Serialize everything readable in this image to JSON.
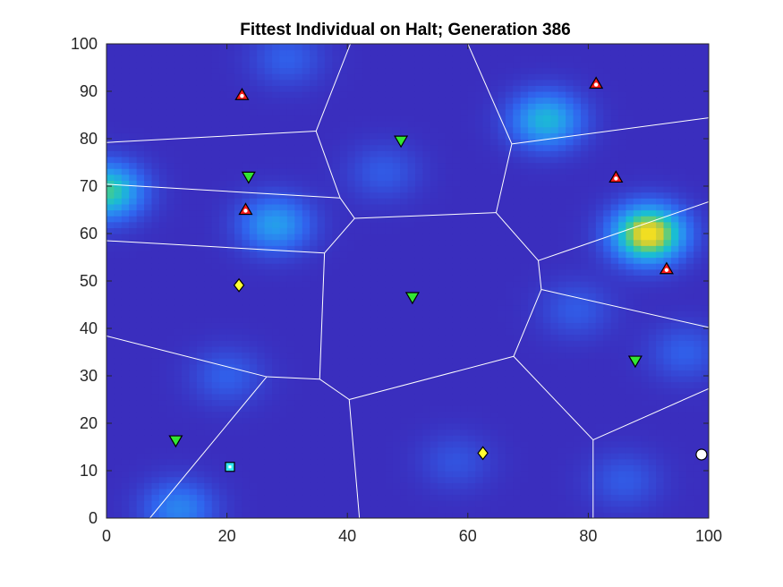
{
  "chart_data": {
    "type": "scatter",
    "title": "Fittest Individual on Halt; Generation 386",
    "xlabel": "",
    "ylabel": "",
    "xlim": [
      0,
      100
    ],
    "ylim": [
      0,
      100
    ],
    "x_ticks": [
      0,
      20,
      40,
      60,
      80,
      100
    ],
    "y_ticks": [
      0,
      10,
      20,
      30,
      40,
      50,
      60,
      70,
      80,
      90,
      100
    ],
    "grid": false,
    "legend": "none",
    "colors": {
      "background_low": "#3a2fbd",
      "background_mid": "#2f86f5",
      "background_high": "#f8e21e",
      "region_lines": "#ffffff",
      "red_triangle": "#ff1a1a",
      "green_triangle": "#33e633",
      "yellow_diamond": "#ffff33",
      "cyan_square": "#33e6f2",
      "white_circle": "#ffffff"
    },
    "heat_sources": [
      {
        "x": 90,
        "y": 60,
        "intensity": 1.0
      },
      {
        "x": 73,
        "y": 84,
        "intensity": 0.55
      },
      {
        "x": 0,
        "y": 69,
        "intensity": 0.7
      },
      {
        "x": 28,
        "y": 62,
        "intensity": 0.45
      },
      {
        "x": 12,
        "y": 2,
        "intensity": 0.35
      },
      {
        "x": 46,
        "y": 73,
        "intensity": 0.18
      },
      {
        "x": 20,
        "y": 30,
        "intensity": 0.2
      },
      {
        "x": 78,
        "y": 44,
        "intensity": 0.18
      },
      {
        "x": 96,
        "y": 35,
        "intensity": 0.2
      },
      {
        "x": 30,
        "y": 97,
        "intensity": 0.2
      },
      {
        "x": 58,
        "y": 12,
        "intensity": 0.15
      },
      {
        "x": 86,
        "y": 8,
        "intensity": 0.18
      }
    ],
    "region_edges": [
      [
        [
          0,
          79.2
        ],
        [
          34.8,
          81.6
        ]
      ],
      [
        [
          34.8,
          81.6
        ],
        [
          40.5,
          100
        ]
      ],
      [
        [
          34.8,
          81.6
        ],
        [
          38.8,
          67.5
        ]
      ],
      [
        [
          0,
          70.4
        ],
        [
          38.8,
          67.5
        ]
      ],
      [
        [
          38.8,
          67.5
        ],
        [
          41.2,
          63.2
        ]
      ],
      [
        [
          0,
          58.5
        ],
        [
          36.2,
          55.9
        ]
      ],
      [
        [
          36.2,
          55.9
        ],
        [
          41.2,
          63.2
        ]
      ],
      [
        [
          41.2,
          63.2
        ],
        [
          64.7,
          64.4
        ]
      ],
      [
        [
          60,
          100
        ],
        [
          67.3,
          78.9
        ]
      ],
      [
        [
          64.7,
          64.4
        ],
        [
          67.3,
          78.9
        ]
      ],
      [
        [
          67.3,
          78.9
        ],
        [
          100,
          84.4
        ]
      ],
      [
        [
          64.7,
          64.4
        ],
        [
          71.7,
          54.3
        ]
      ],
      [
        [
          71.7,
          54.3
        ],
        [
          100,
          66.7
        ]
      ],
      [
        [
          71.7,
          54.3
        ],
        [
          72.2,
          48.2
        ]
      ],
      [
        [
          72.2,
          48.2
        ],
        [
          100,
          40.2
        ]
      ],
      [
        [
          72.2,
          48.2
        ],
        [
          67.6,
          34.1
        ]
      ],
      [
        [
          36.2,
          55.9
        ],
        [
          35.4,
          29.3
        ]
      ],
      [
        [
          0,
          38.4
        ],
        [
          26.6,
          29.8
        ]
      ],
      [
        [
          26.6,
          29.8
        ],
        [
          35.4,
          29.3
        ]
      ],
      [
        [
          35.4,
          29.3
        ],
        [
          40.3,
          25.0
        ]
      ],
      [
        [
          40.3,
          25.0
        ],
        [
          67.6,
          34.1
        ]
      ],
      [
        [
          67.6,
          34.1
        ],
        [
          80.8,
          16.5
        ]
      ],
      [
        [
          80.8,
          16.5
        ],
        [
          100,
          27.3
        ]
      ],
      [
        [
          80.8,
          16.5
        ],
        [
          80.8,
          0
        ]
      ],
      [
        [
          26.6,
          29.8
        ],
        [
          7.2,
          0
        ]
      ],
      [
        [
          40.3,
          25.0
        ],
        [
          42.0,
          0
        ]
      ]
    ],
    "series": [
      {
        "marker": "triangle-up",
        "color": "red",
        "points": [
          {
            "x": 22.5,
            "y": 89.2
          },
          {
            "x": 81.3,
            "y": 91.6
          },
          {
            "x": 84.6,
            "y": 71.8
          },
          {
            "x": 23.1,
            "y": 65.0
          },
          {
            "x": 93.0,
            "y": 52.5
          }
        ]
      },
      {
        "marker": "triangle-down",
        "color": "green",
        "points": [
          {
            "x": 48.9,
            "y": 79.6
          },
          {
            "x": 23.6,
            "y": 72.0
          },
          {
            "x": 50.8,
            "y": 46.6
          },
          {
            "x": 87.8,
            "y": 33.2
          },
          {
            "x": 11.5,
            "y": 16.4
          }
        ]
      },
      {
        "marker": "diamond",
        "color": "yellow",
        "points": [
          {
            "x": 22.0,
            "y": 49.1
          },
          {
            "x": 62.5,
            "y": 13.7
          }
        ]
      },
      {
        "marker": "square",
        "color": "cyan",
        "points": [
          {
            "x": 20.5,
            "y": 10.8
          }
        ]
      },
      {
        "marker": "circle",
        "color": "white",
        "points": [
          {
            "x": 98.8,
            "y": 13.4
          }
        ]
      }
    ]
  }
}
